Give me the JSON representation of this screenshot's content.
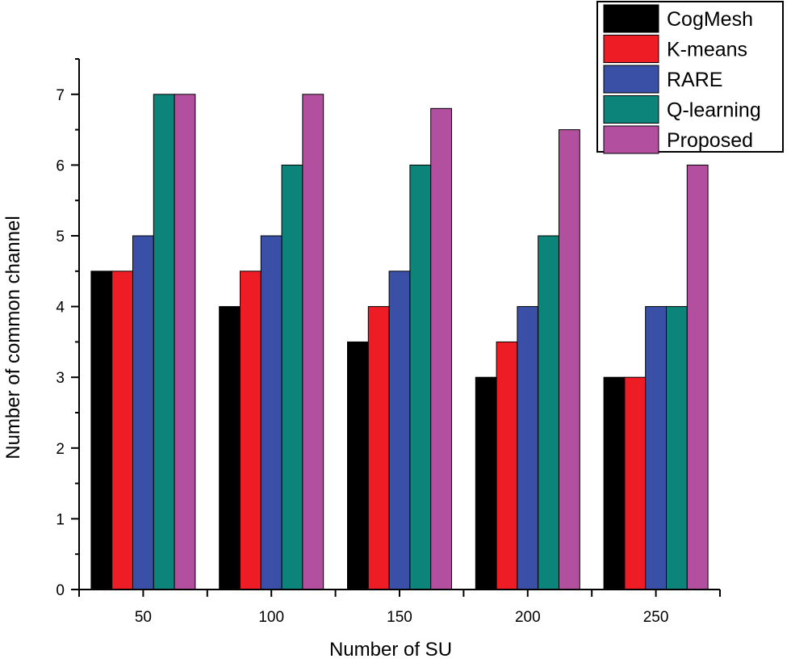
{
  "chart_data": {
    "type": "bar",
    "title": "",
    "xlabel": "Number of SU",
    "ylabel": "Number of common channel",
    "categories": [
      "50",
      "100",
      "150",
      "200",
      "250"
    ],
    "ylim": [
      0,
      7.5
    ],
    "yticks": [
      "0",
      "1",
      "2",
      "3",
      "4",
      "5",
      "6",
      "7"
    ],
    "grid": false,
    "legend_position": "top-right",
    "series": [
      {
        "name": "CogMesh",
        "color": "#000000",
        "values": [
          4.5,
          4.0,
          3.5,
          3.0,
          3.0
        ]
      },
      {
        "name": "K-means",
        "color": "#ee1c25",
        "values": [
          4.5,
          4.5,
          4.0,
          3.5,
          3.0
        ]
      },
      {
        "name": "RARE",
        "color": "#3a50a6",
        "values": [
          5.0,
          5.0,
          4.5,
          4.0,
          4.0
        ]
      },
      {
        "name": "Q-learning",
        "color": "#0d8479",
        "values": [
          7.0,
          6.0,
          6.0,
          5.0,
          4.0
        ]
      },
      {
        "name": "Proposed",
        "color": "#b24f9f",
        "values": [
          7.0,
          7.0,
          6.8,
          6.5,
          6.0
        ]
      }
    ]
  }
}
